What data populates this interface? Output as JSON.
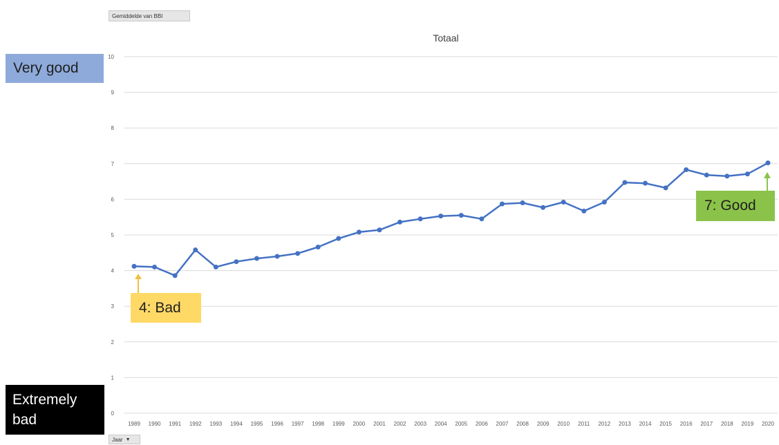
{
  "pivot": {
    "value_field": "Gemiddelde van BBI",
    "axis_field": "Jaar"
  },
  "chart_data": {
    "type": "line",
    "title": "Totaal",
    "xlabel": "",
    "ylabel": "",
    "ylim": [
      0,
      10
    ],
    "yticks": [
      0,
      1,
      2,
      3,
      4,
      5,
      6,
      7,
      8,
      9,
      10
    ],
    "grid": true,
    "legend": "none",
    "categories": [
      "1989",
      "1990",
      "1991",
      "1992",
      "1993",
      "1994",
      "1995",
      "1996",
      "1997",
      "1998",
      "1999",
      "2000",
      "2001",
      "2002",
      "2003",
      "2004",
      "2005",
      "2006",
      "2007",
      "2008",
      "2009",
      "2010",
      "2011",
      "2012",
      "2013",
      "2014",
      "2015",
      "2016",
      "2017",
      "2018",
      "2019",
      "2020"
    ],
    "series": [
      {
        "values": [
          4.12,
          4.1,
          3.86,
          4.58,
          4.1,
          4.25,
          4.34,
          4.4,
          4.48,
          4.66,
          4.9,
          5.08,
          5.14,
          5.36,
          5.45,
          5.53,
          5.55,
          5.45,
          5.87,
          5.9,
          5.77,
          5.92,
          5.67,
          5.92,
          6.47,
          6.45,
          6.32,
          6.83,
          6.68,
          6.65,
          6.71,
          7.02
        ],
        "color": "#4472c4"
      }
    ]
  },
  "annotations": {
    "very_good": "Very good",
    "extremely_bad_line1": "Extremely",
    "extremely_bad_line2": "bad",
    "bad": "4: Bad",
    "good": "7: Good",
    "very_good_color": "#8eaadb",
    "extremely_bad_color": "#000000",
    "bad_color": "#ffd966",
    "good_color": "#8bc34a"
  }
}
